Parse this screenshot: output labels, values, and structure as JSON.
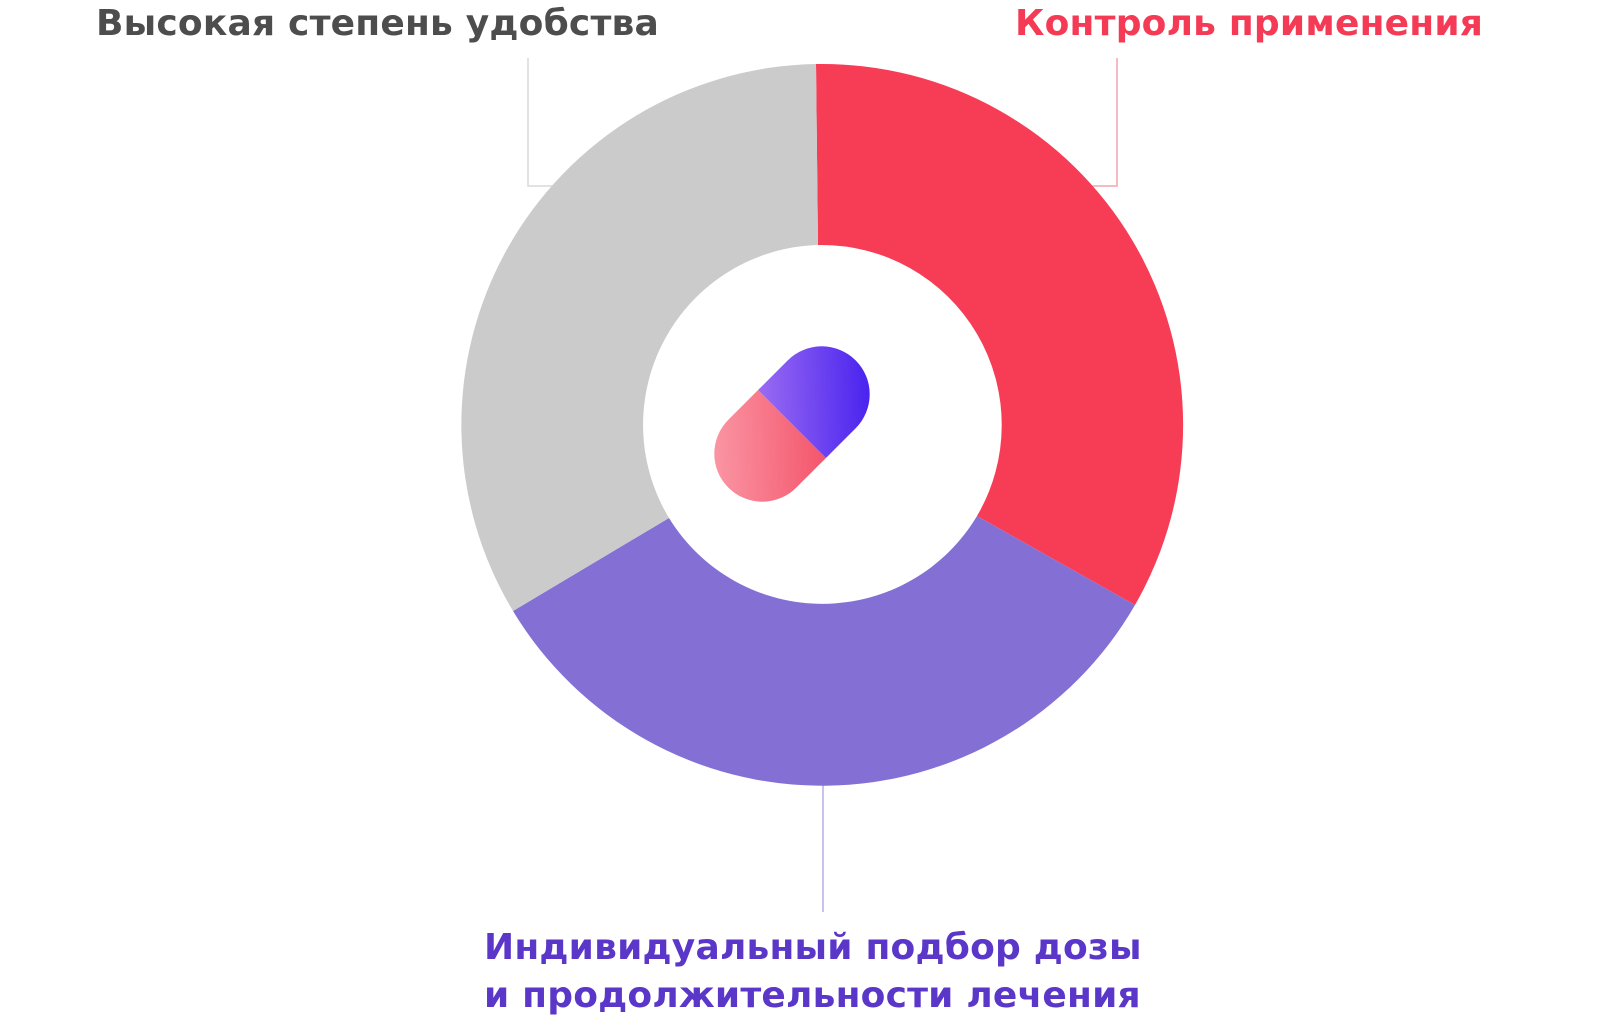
{
  "colors": {
    "gray_segment": "#cbcbcb",
    "red_segment": "#f73c56",
    "purple_segment": "#8470d4",
    "gray_text": "#4d4d4d",
    "red_text": "#f43a55",
    "purple_text": "#5a37c9",
    "pill_pink": "#f7697c",
    "pill_blue": "#3d1df0"
  },
  "segments": [
    {
      "key": "convenience",
      "label": "Высокая степень удобства",
      "color": "#cbcbcb"
    },
    {
      "key": "control",
      "label": "Контроль применения",
      "color": "#f73c56"
    },
    {
      "key": "individual",
      "label_line1": "Индивидуальный подбор дозы",
      "label_line2": "и продолжительности лечения",
      "color": "#8470d4"
    }
  ],
  "center_icon": "pill-capsule-icon"
}
